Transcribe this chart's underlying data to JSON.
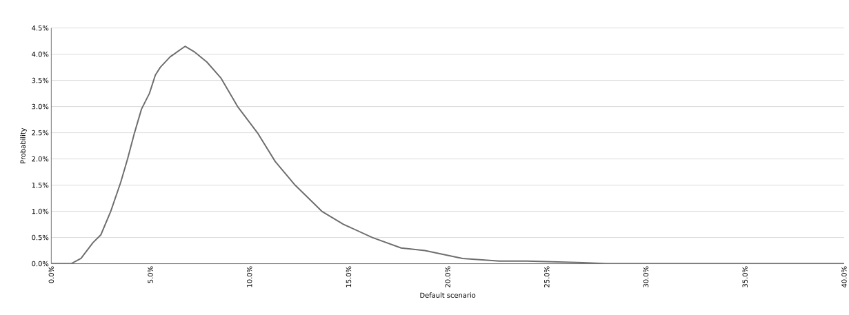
{
  "chart_data": {
    "type": "line",
    "xlabel": "Default scenario",
    "ylabel": "Probability",
    "x": [
      0,
      1.0,
      1.5,
      2.1,
      2.5,
      3.0,
      3.5,
      3.85,
      4.2,
      4.55,
      4.95,
      5.25,
      5.5,
      6.0,
      6.75,
      7.2,
      7.85,
      8.55,
      9.4,
      10.4,
      11.3,
      12.3,
      13.65,
      14.75,
      16.2,
      17.65,
      18.85,
      20.75,
      22.6,
      24.0,
      26.8,
      28.0,
      40.0
    ],
    "series": [
      {
        "color": "#6e6e6e",
        "values": [
          0,
          0,
          0.1,
          0.4,
          0.55,
          1.0,
          1.55,
          2.0,
          2.5,
          2.95,
          3.25,
          3.6,
          3.75,
          3.95,
          4.15,
          4.05,
          3.85,
          3.55,
          3.0,
          2.5,
          1.95,
          1.5,
          1.0,
          0.75,
          0.5,
          0.3,
          0.25,
          0.1,
          0.05,
          0.05,
          0.02,
          0,
          0
        ]
      }
    ],
    "xlim": [
      0,
      40
    ],
    "xticks": [
      {
        "value": 0,
        "label": "0.0%"
      },
      {
        "value": 5,
        "label": "5.0%"
      },
      {
        "value": 10,
        "label": "10.0%"
      },
      {
        "value": 15,
        "label": "15.0%"
      },
      {
        "value": 20,
        "label": "20.0%"
      },
      {
        "value": 25,
        "label": "25.0%"
      },
      {
        "value": 30,
        "label": "30.0%"
      },
      {
        "value": 35,
        "label": "35.0%"
      },
      {
        "value": 40,
        "label": "40.0%"
      }
    ],
    "ylim": [
      0,
      4.5
    ],
    "yticks": [
      {
        "value": 0,
        "label": "0.0%"
      },
      {
        "value": 0.5,
        "label": "0.5%"
      },
      {
        "value": 1,
        "label": "1.0%"
      },
      {
        "value": 1.5,
        "label": "1.5%"
      },
      {
        "value": 2,
        "label": "2.0%"
      },
      {
        "value": 2.5,
        "label": "2.5%"
      },
      {
        "value": 3,
        "label": "3.0%"
      },
      {
        "value": 3.5,
        "label": "3.5%"
      },
      {
        "value": 4,
        "label": "4.0%"
      },
      {
        "value": 4.5,
        "label": "4.5%"
      }
    ],
    "grid": "y",
    "marker": "none",
    "line_style": "solid"
  }
}
